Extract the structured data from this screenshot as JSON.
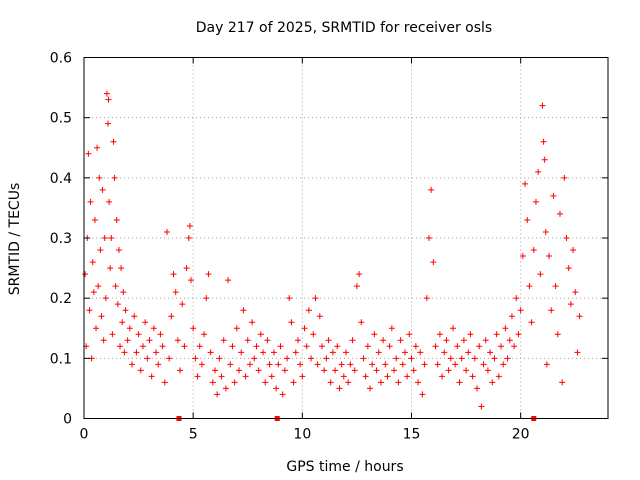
{
  "chart_data": {
    "type": "scatter",
    "title": "Day 217 of 2025, SRMTID for receiver osls",
    "xlabel": "GPS time / hours",
    "ylabel": "SRMTID / TECUs",
    "xlim": [
      0,
      24
    ],
    "ylim": [
      0,
      0.6
    ],
    "xticks": [
      0,
      5,
      10,
      15,
      20
    ],
    "xtick_labels": [
      "0",
      "5",
      "10",
      "15",
      "20"
    ],
    "yticks": [
      0,
      0.1,
      0.2,
      0.3,
      0.4,
      0.5,
      0.6
    ],
    "ytick_labels": [
      "0",
      "0.1",
      "0.2",
      "0.3",
      "0.4",
      "0.5",
      "0.6"
    ],
    "grid": true,
    "marker": "plus",
    "color": "#ff0000",
    "zero_markers_x": [
      4.35,
      8.85,
      20.6
    ],
    "series": [
      {
        "name": "SRMTID",
        "points": [
          [
            0.05,
            0.24
          ],
          [
            0.1,
            0.12
          ],
          [
            0.15,
            0.3
          ],
          [
            0.2,
            0.44
          ],
          [
            0.25,
            0.18
          ],
          [
            0.3,
            0.36
          ],
          [
            0.35,
            0.1
          ],
          [
            0.4,
            0.26
          ],
          [
            0.45,
            0.21
          ],
          [
            0.5,
            0.33
          ],
          [
            0.55,
            0.15
          ],
          [
            0.6,
            0.45
          ],
          [
            0.65,
            0.22
          ],
          [
            0.7,
            0.4
          ],
          [
            0.75,
            0.28
          ],
          [
            0.8,
            0.17
          ],
          [
            0.85,
            0.38
          ],
          [
            0.9,
            0.13
          ],
          [
            0.95,
            0.3
          ],
          [
            1.0,
            0.2
          ],
          [
            1.05,
            0.54
          ],
          [
            1.1,
            0.49
          ],
          [
            1.12,
            0.53
          ],
          [
            1.15,
            0.36
          ],
          [
            1.2,
            0.25
          ],
          [
            1.25,
            0.3
          ],
          [
            1.3,
            0.14
          ],
          [
            1.35,
            0.46
          ],
          [
            1.4,
            0.4
          ],
          [
            1.45,
            0.22
          ],
          [
            1.5,
            0.33
          ],
          [
            1.55,
            0.19
          ],
          [
            1.6,
            0.28
          ],
          [
            1.65,
            0.12
          ],
          [
            1.7,
            0.25
          ],
          [
            1.75,
            0.16
          ],
          [
            1.8,
            0.21
          ],
          [
            1.85,
            0.11
          ],
          [
            1.9,
            0.18
          ],
          [
            2.0,
            0.13
          ],
          [
            2.1,
            0.15
          ],
          [
            2.2,
            0.09
          ],
          [
            2.3,
            0.17
          ],
          [
            2.4,
            0.11
          ],
          [
            2.5,
            0.14
          ],
          [
            2.6,
            0.08
          ],
          [
            2.7,
            0.12
          ],
          [
            2.8,
            0.16
          ],
          [
            2.9,
            0.1
          ],
          [
            3.0,
            0.13
          ],
          [
            3.1,
            0.07
          ],
          [
            3.2,
            0.15
          ],
          [
            3.3,
            0.11
          ],
          [
            3.4,
            0.09
          ],
          [
            3.5,
            0.14
          ],
          [
            3.6,
            0.12
          ],
          [
            3.7,
            0.06
          ],
          [
            3.8,
            0.31
          ],
          [
            3.9,
            0.1
          ],
          [
            4.0,
            0.17
          ],
          [
            4.1,
            0.24
          ],
          [
            4.2,
            0.21
          ],
          [
            4.3,
            0.13
          ],
          [
            4.4,
            0.08
          ],
          [
            4.5,
            0.19
          ],
          [
            4.6,
            0.12
          ],
          [
            4.7,
            0.25
          ],
          [
            4.8,
            0.3
          ],
          [
            4.85,
            0.32
          ],
          [
            4.9,
            0.23
          ],
          [
            5.0,
            0.15
          ],
          [
            5.1,
            0.1
          ],
          [
            5.2,
            0.07
          ],
          [
            5.3,
            0.12
          ],
          [
            5.4,
            0.09
          ],
          [
            5.5,
            0.14
          ],
          [
            5.6,
            0.2
          ],
          [
            5.7,
            0.24
          ],
          [
            5.8,
            0.11
          ],
          [
            5.9,
            0.06
          ],
          [
            6.0,
            0.08
          ],
          [
            6.1,
            0.04
          ],
          [
            6.2,
            0.1
          ],
          [
            6.3,
            0.07
          ],
          [
            6.4,
            0.13
          ],
          [
            6.5,
            0.05
          ],
          [
            6.6,
            0.23
          ],
          [
            6.7,
            0.09
          ],
          [
            6.8,
            0.12
          ],
          [
            6.9,
            0.06
          ],
          [
            7.0,
            0.15
          ],
          [
            7.1,
            0.08
          ],
          [
            7.2,
            0.11
          ],
          [
            7.3,
            0.18
          ],
          [
            7.4,
            0.07
          ],
          [
            7.5,
            0.13
          ],
          [
            7.6,
            0.09
          ],
          [
            7.7,
            0.16
          ],
          [
            7.8,
            0.1
          ],
          [
            7.9,
            0.12
          ],
          [
            8.0,
            0.08
          ],
          [
            8.1,
            0.14
          ],
          [
            8.2,
            0.11
          ],
          [
            8.3,
            0.06
          ],
          [
            8.4,
            0.13
          ],
          [
            8.5,
            0.09
          ],
          [
            8.6,
            0.07
          ],
          [
            8.7,
            0.11
          ],
          [
            8.8,
            0.05
          ],
          [
            8.9,
            0.09
          ],
          [
            9.0,
            0.12
          ],
          [
            9.1,
            0.04
          ],
          [
            9.2,
            0.08
          ],
          [
            9.3,
            0.1
          ],
          [
            9.4,
            0.2
          ],
          [
            9.5,
            0.16
          ],
          [
            9.6,
            0.06
          ],
          [
            9.7,
            0.11
          ],
          [
            9.8,
            0.13
          ],
          [
            9.9,
            0.09
          ],
          [
            10.0,
            0.07
          ],
          [
            10.1,
            0.15
          ],
          [
            10.2,
            0.12
          ],
          [
            10.3,
            0.18
          ],
          [
            10.4,
            0.1
          ],
          [
            10.5,
            0.14
          ],
          [
            10.6,
            0.2
          ],
          [
            10.7,
            0.09
          ],
          [
            10.8,
            0.17
          ],
          [
            10.9,
            0.12
          ],
          [
            11.0,
            0.08
          ],
          [
            11.1,
            0.1
          ],
          [
            11.2,
            0.13
          ],
          [
            11.3,
            0.06
          ],
          [
            11.4,
            0.11
          ],
          [
            11.5,
            0.08
          ],
          [
            11.6,
            0.12
          ],
          [
            11.7,
            0.05
          ],
          [
            11.8,
            0.09
          ],
          [
            11.9,
            0.07
          ],
          [
            12.0,
            0.11
          ],
          [
            12.1,
            0.06
          ],
          [
            12.2,
            0.09
          ],
          [
            12.3,
            0.13
          ],
          [
            12.4,
            0.08
          ],
          [
            12.5,
            0.22
          ],
          [
            12.6,
            0.24
          ],
          [
            12.7,
            0.16
          ],
          [
            12.8,
            0.1
          ],
          [
            12.9,
            0.07
          ],
          [
            13.0,
            0.12
          ],
          [
            13.1,
            0.05
          ],
          [
            13.2,
            0.09
          ],
          [
            13.3,
            0.14
          ],
          [
            13.4,
            0.08
          ],
          [
            13.5,
            0.11
          ],
          [
            13.6,
            0.06
          ],
          [
            13.7,
            0.13
          ],
          [
            13.8,
            0.09
          ],
          [
            13.9,
            0.07
          ],
          [
            14.0,
            0.12
          ],
          [
            14.1,
            0.15
          ],
          [
            14.2,
            0.08
          ],
          [
            14.3,
            0.1
          ],
          [
            14.4,
            0.06
          ],
          [
            14.5,
            0.13
          ],
          [
            14.6,
            0.09
          ],
          [
            14.7,
            0.11
          ],
          [
            14.8,
            0.07
          ],
          [
            14.9,
            0.14
          ],
          [
            15.0,
            0.1
          ],
          [
            15.1,
            0.08
          ],
          [
            15.2,
            0.12
          ],
          [
            15.3,
            0.06
          ],
          [
            15.4,
            0.11
          ],
          [
            15.5,
            0.04
          ],
          [
            15.6,
            0.09
          ],
          [
            15.7,
            0.2
          ],
          [
            15.8,
            0.3
          ],
          [
            15.9,
            0.38
          ],
          [
            16.0,
            0.26
          ],
          [
            16.1,
            0.12
          ],
          [
            16.2,
            0.09
          ],
          [
            16.3,
            0.14
          ],
          [
            16.4,
            0.07
          ],
          [
            16.5,
            0.11
          ],
          [
            16.6,
            0.13
          ],
          [
            16.7,
            0.08
          ],
          [
            16.8,
            0.1
          ],
          [
            16.9,
            0.15
          ],
          [
            17.0,
            0.09
          ],
          [
            17.1,
            0.12
          ],
          [
            17.2,
            0.06
          ],
          [
            17.3,
            0.1
          ],
          [
            17.4,
            0.13
          ],
          [
            17.5,
            0.08
          ],
          [
            17.6,
            0.11
          ],
          [
            17.7,
            0.14
          ],
          [
            17.8,
            0.07
          ],
          [
            17.9,
            0.1
          ],
          [
            18.0,
            0.05
          ],
          [
            18.1,
            0.12
          ],
          [
            18.2,
            0.02
          ],
          [
            18.3,
            0.09
          ],
          [
            18.4,
            0.13
          ],
          [
            18.5,
            0.08
          ],
          [
            18.6,
            0.11
          ],
          [
            18.7,
            0.06
          ],
          [
            18.8,
            0.1
          ],
          [
            18.9,
            0.14
          ],
          [
            19.0,
            0.07
          ],
          [
            19.1,
            0.12
          ],
          [
            19.2,
            0.09
          ],
          [
            19.3,
            0.15
          ],
          [
            19.4,
            0.1
          ],
          [
            19.5,
            0.13
          ],
          [
            19.6,
            0.17
          ],
          [
            19.7,
            0.12
          ],
          [
            19.8,
            0.2
          ],
          [
            19.9,
            0.14
          ],
          [
            20.0,
            0.18
          ],
          [
            20.1,
            0.27
          ],
          [
            20.2,
            0.39
          ],
          [
            20.3,
            0.33
          ],
          [
            20.4,
            0.22
          ],
          [
            20.5,
            0.16
          ],
          [
            20.6,
            0.28
          ],
          [
            20.7,
            0.36
          ],
          [
            20.8,
            0.41
          ],
          [
            20.9,
            0.24
          ],
          [
            21.0,
            0.52
          ],
          [
            21.05,
            0.46
          ],
          [
            21.1,
            0.43
          ],
          [
            21.15,
            0.31
          ],
          [
            21.2,
            0.09
          ],
          [
            21.3,
            0.27
          ],
          [
            21.4,
            0.18
          ],
          [
            21.5,
            0.37
          ],
          [
            21.6,
            0.22
          ],
          [
            21.7,
            0.14
          ],
          [
            21.8,
            0.34
          ],
          [
            21.9,
            0.06
          ],
          [
            22.0,
            0.4
          ],
          [
            22.1,
            0.3
          ],
          [
            22.2,
            0.25
          ],
          [
            22.3,
            0.19
          ],
          [
            22.4,
            0.28
          ],
          [
            22.5,
            0.21
          ],
          [
            22.6,
            0.11
          ],
          [
            22.7,
            0.17
          ]
        ]
      }
    ]
  }
}
